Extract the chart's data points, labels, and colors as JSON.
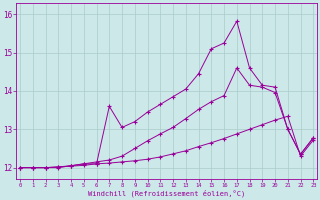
{
  "xlabel": "Windchill (Refroidissement éolien,°C)",
  "bg_color": "#cce8e8",
  "grid_color": "#aacccc",
  "line_color": "#990099",
  "x_min": 0,
  "x_max": 23,
  "y_min": 11.7,
  "y_max": 16.3,
  "yticks": [
    12,
    13,
    14,
    15,
    16
  ],
  "line1_x": [
    0,
    1,
    2,
    3,
    4,
    5,
    6,
    7,
    8,
    9,
    10,
    11,
    12,
    13,
    14,
    15,
    16,
    17,
    18,
    19,
    20,
    21,
    22,
    23
  ],
  "line1_y": [
    12.0,
    12.0,
    12.0,
    12.0,
    12.05,
    12.1,
    12.1,
    13.6,
    13.05,
    13.2,
    13.45,
    13.65,
    13.85,
    14.05,
    14.45,
    15.1,
    15.25,
    15.82,
    14.6,
    14.15,
    14.1,
    13.0,
    12.35,
    12.78
  ],
  "line2_x": [
    0,
    1,
    2,
    3,
    4,
    5,
    6,
    7,
    8,
    9,
    10,
    11,
    12,
    13,
    14,
    15,
    16,
    17,
    18,
    19,
    20,
    21,
    22,
    23
  ],
  "line2_y": [
    12.0,
    12.0,
    12.0,
    12.02,
    12.04,
    12.06,
    12.1,
    12.12,
    12.15,
    12.18,
    12.22,
    12.28,
    12.36,
    12.44,
    12.55,
    12.65,
    12.76,
    12.88,
    13.0,
    13.12,
    13.24,
    13.34,
    12.3,
    12.72
  ],
  "line3_x": [
    0,
    1,
    2,
    3,
    4,
    5,
    6,
    7,
    8,
    9,
    10,
    11,
    12,
    13,
    14,
    15,
    16,
    17,
    18,
    19,
    20,
    21,
    22,
    23
  ],
  "line3_y": [
    12.0,
    12.0,
    12.0,
    12.02,
    12.05,
    12.1,
    12.15,
    12.2,
    12.3,
    12.5,
    12.7,
    12.88,
    13.05,
    13.28,
    13.52,
    13.72,
    13.88,
    14.6,
    14.15,
    14.1,
    13.96,
    13.0,
    12.35,
    12.78
  ]
}
